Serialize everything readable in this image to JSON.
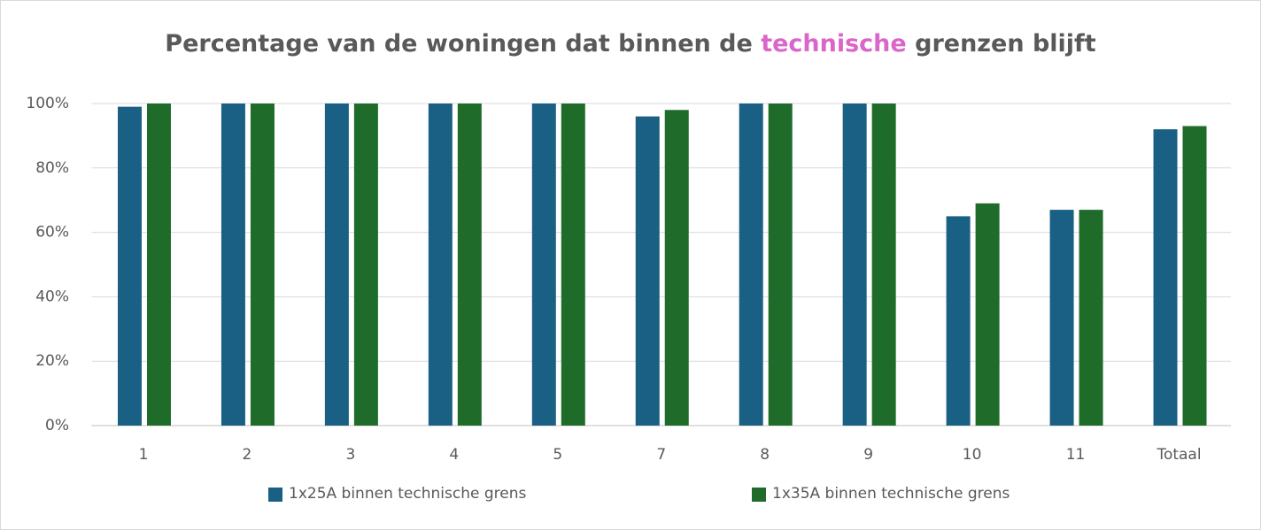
{
  "chart_data": {
    "type": "bar",
    "title_parts": [
      "Percentage van de woningen dat binnen de ",
      "technische",
      " grenzen blijft"
    ],
    "title_highlight_color": "#d966c8",
    "categories": [
      "1",
      "2",
      "3",
      "4",
      "5",
      "7",
      "8",
      "9",
      "10",
      "11",
      "Totaal"
    ],
    "series": [
      {
        "name": "1x25A binnen technische grens",
        "color": "#1a5f84",
        "values": [
          99,
          100,
          100,
          100,
          100,
          96,
          100,
          100,
          65,
          67,
          92
        ]
      },
      {
        "name": "1x35A binnen technische grens",
        "color": "#1e6b2a",
        "values": [
          100,
          100,
          100,
          100,
          100,
          98,
          100,
          100,
          69,
          67,
          93
        ]
      }
    ],
    "ylim": [
      0,
      100
    ],
    "yticks": [
      {
        "value": 0,
        "label": "0%"
      },
      {
        "value": 20,
        "label": "20%"
      },
      {
        "value": 40,
        "label": "40%"
      },
      {
        "value": 60,
        "label": "60%"
      },
      {
        "value": 80,
        "label": "80%"
      },
      {
        "value": 100,
        "label": "100%"
      }
    ],
    "grid": true,
    "legend": "bottom"
  }
}
